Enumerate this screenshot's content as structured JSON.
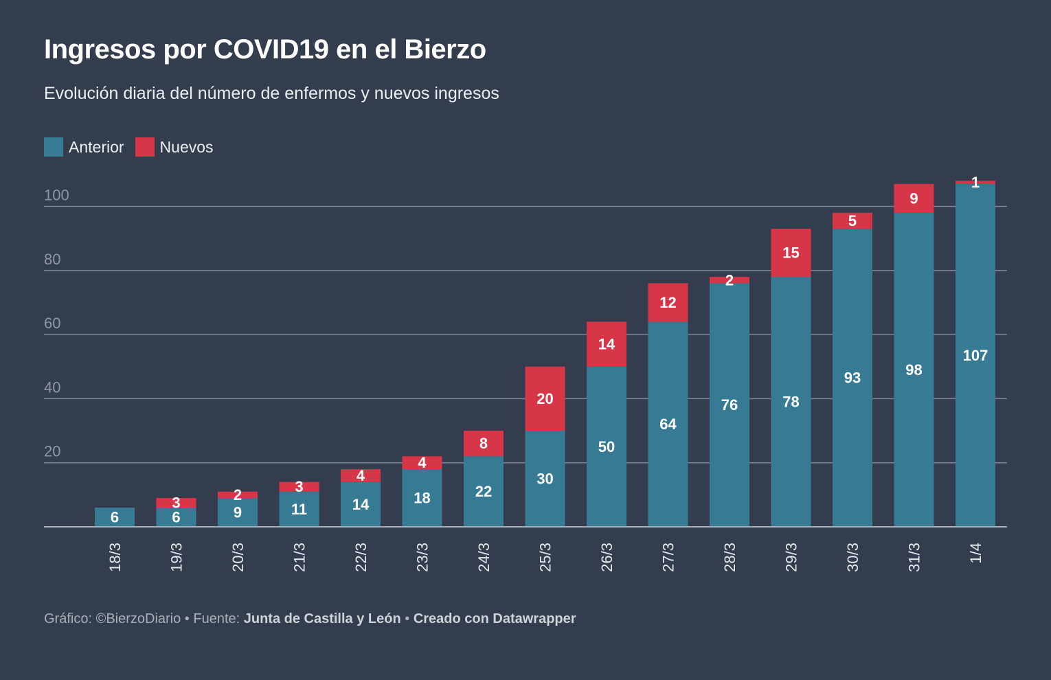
{
  "title": "Ingresos por COVID19 en el Bierzo",
  "subtitle": "Evolución diaria del número de enfermos y nuevos ingresos",
  "legend": [
    {
      "label": "Anterior",
      "color": "#377a93"
    },
    {
      "label": "Nuevos",
      "color": "#d73648"
    }
  ],
  "footer": {
    "prefix": "Gráfico: ©BierzoDiario • Fuente: ",
    "source": "Junta de Castilla y León",
    "separator": " • ",
    "credit": "Creado con Datawrapper"
  },
  "chart_data": {
    "type": "bar",
    "stacked": true,
    "categories": [
      "18/3",
      "19/3",
      "20/3",
      "21/3",
      "22/3",
      "23/3",
      "24/3",
      "25/3",
      "26/3",
      "27/3",
      "28/3",
      "29/3",
      "30/3",
      "31/3",
      "1/4"
    ],
    "series": [
      {
        "name": "Anterior",
        "color": "#377a93",
        "values": [
          6,
          6,
          9,
          11,
          14,
          18,
          22,
          30,
          50,
          64,
          76,
          78,
          93,
          98,
          107
        ]
      },
      {
        "name": "Nuevos",
        "color": "#d73648",
        "values": [
          null,
          3,
          2,
          3,
          4,
          4,
          8,
          20,
          14,
          12,
          2,
          15,
          5,
          9,
          1
        ]
      }
    ],
    "yticks": [
      20,
      40,
      60,
      80,
      100
    ],
    "ylim": [
      0,
      108
    ],
    "grid": true,
    "legend_position": "top-left"
  }
}
